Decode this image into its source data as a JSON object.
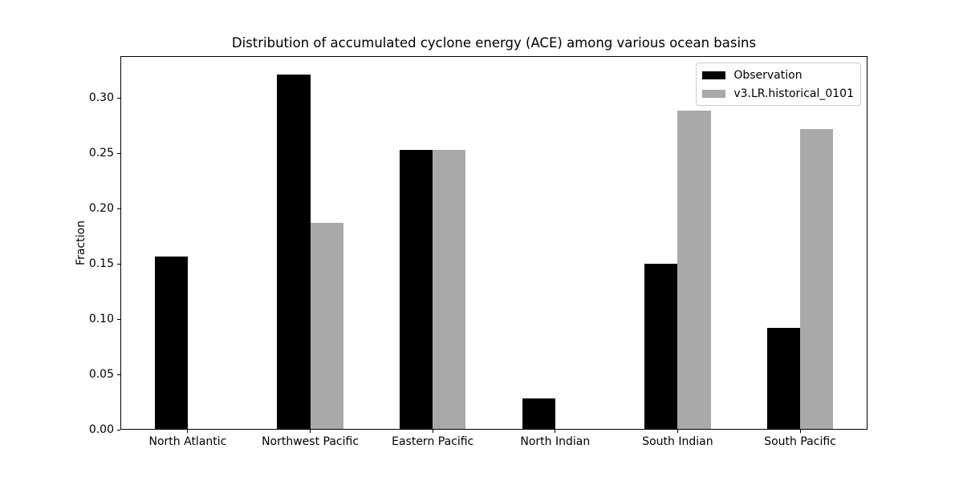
{
  "chart_data": {
    "type": "bar",
    "title": "Distribution of accumulated cyclone energy (ACE) among various ocean basins",
    "xlabel": "",
    "ylabel": "Fraction",
    "categories": [
      "North Atlantic",
      "Northwest Pacific",
      "Eastern Pacific",
      "North Indian",
      "South Indian",
      "South Pacific"
    ],
    "series": [
      {
        "name": "Observation",
        "color": "#000000",
        "values": [
          0.157,
          0.321,
          0.253,
          0.028,
          0.15,
          0.092
        ]
      },
      {
        "name": "v3.LR.historical_0101",
        "color": "#a9a9a9",
        "values": [
          0.0,
          0.187,
          0.253,
          0.0,
          0.289,
          0.272
        ]
      }
    ],
    "ylim": [
      0,
      0.338
    ],
    "xlim": [
      -0.55,
      5.55
    ],
    "yticks": [
      0,
      0.05,
      0.1,
      0.15,
      0.2,
      0.25,
      0.3
    ],
    "ytick_labels": [
      "0.00",
      "0.05",
      "0.10",
      "0.15",
      "0.20",
      "0.25",
      "0.30"
    ],
    "bar_width": 0.27,
    "grid": false,
    "legend_position": "upper right"
  }
}
